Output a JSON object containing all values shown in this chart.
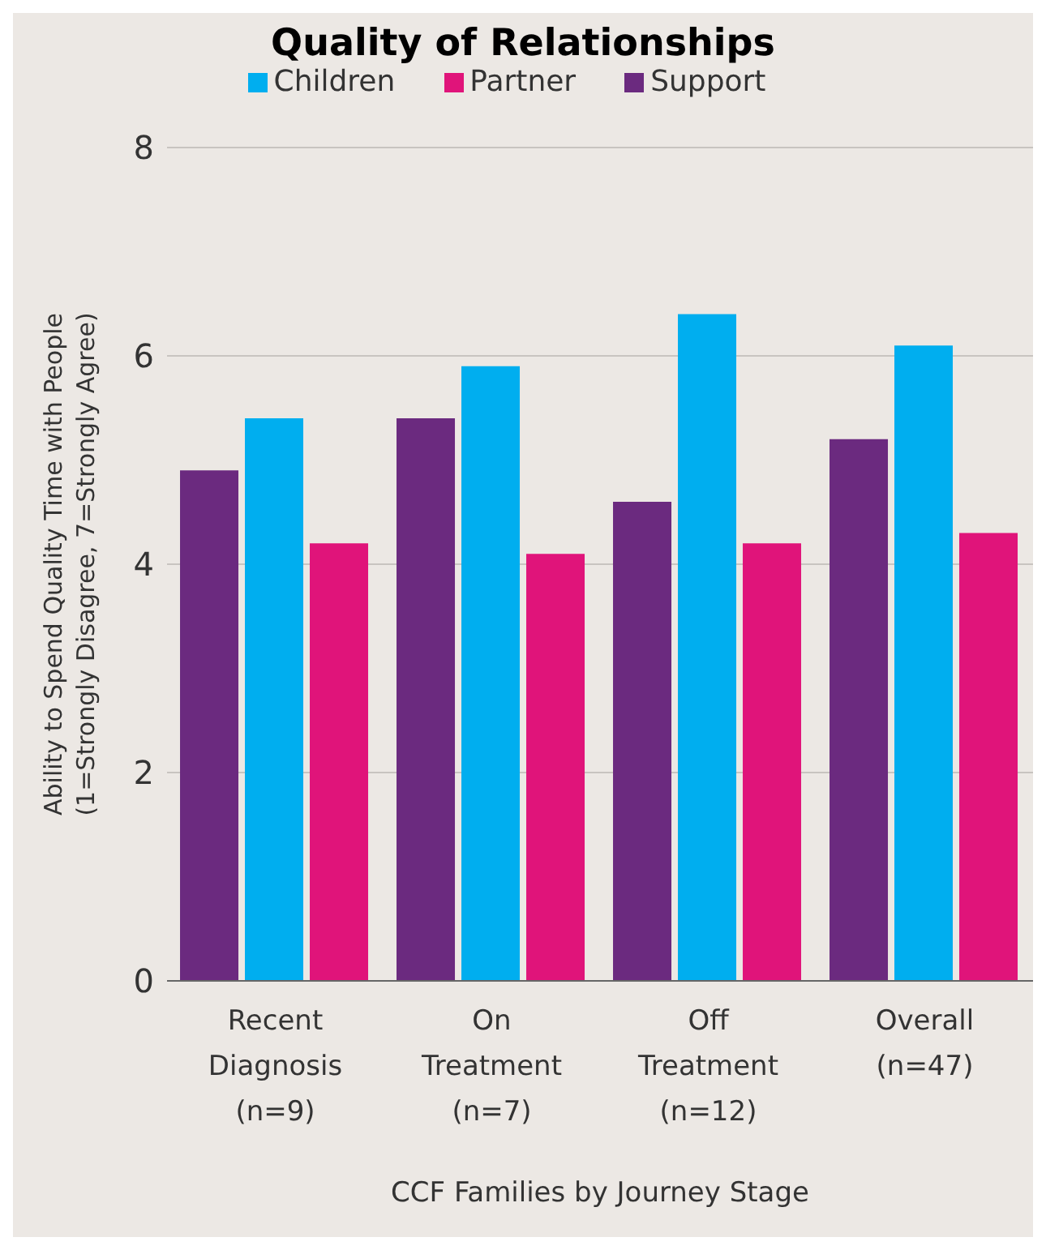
{
  "chart_data": {
    "type": "bar",
    "title": "Quality of Relationships",
    "xlabel": "CCF Families by Journey Stage",
    "ylabel": "Ability to Spend Quality Time with People (1=Strongly Disagree, 7=Strongly Agree)",
    "categories": [
      "Recent Diagnosis (n=9)",
      "On Treatment (n=7)",
      "Off Treatment (n=12)",
      "Overall (n=47)"
    ],
    "series": [
      {
        "name": "Support",
        "color": "#6b2a7f",
        "values": [
          4.9,
          5.4,
          4.6,
          5.2
        ]
      },
      {
        "name": "Children",
        "color": "#00aeef",
        "values": [
          5.4,
          5.9,
          6.4,
          6.1
        ]
      },
      {
        "name": "Partner",
        "color": "#e0147a",
        "values": [
          4.2,
          4.1,
          4.2,
          4.3
        ]
      }
    ],
    "ylim": [
      0,
      8
    ],
    "yticks": [
      0,
      2,
      4,
      6,
      8
    ],
    "grid": "y",
    "legend": "top"
  }
}
